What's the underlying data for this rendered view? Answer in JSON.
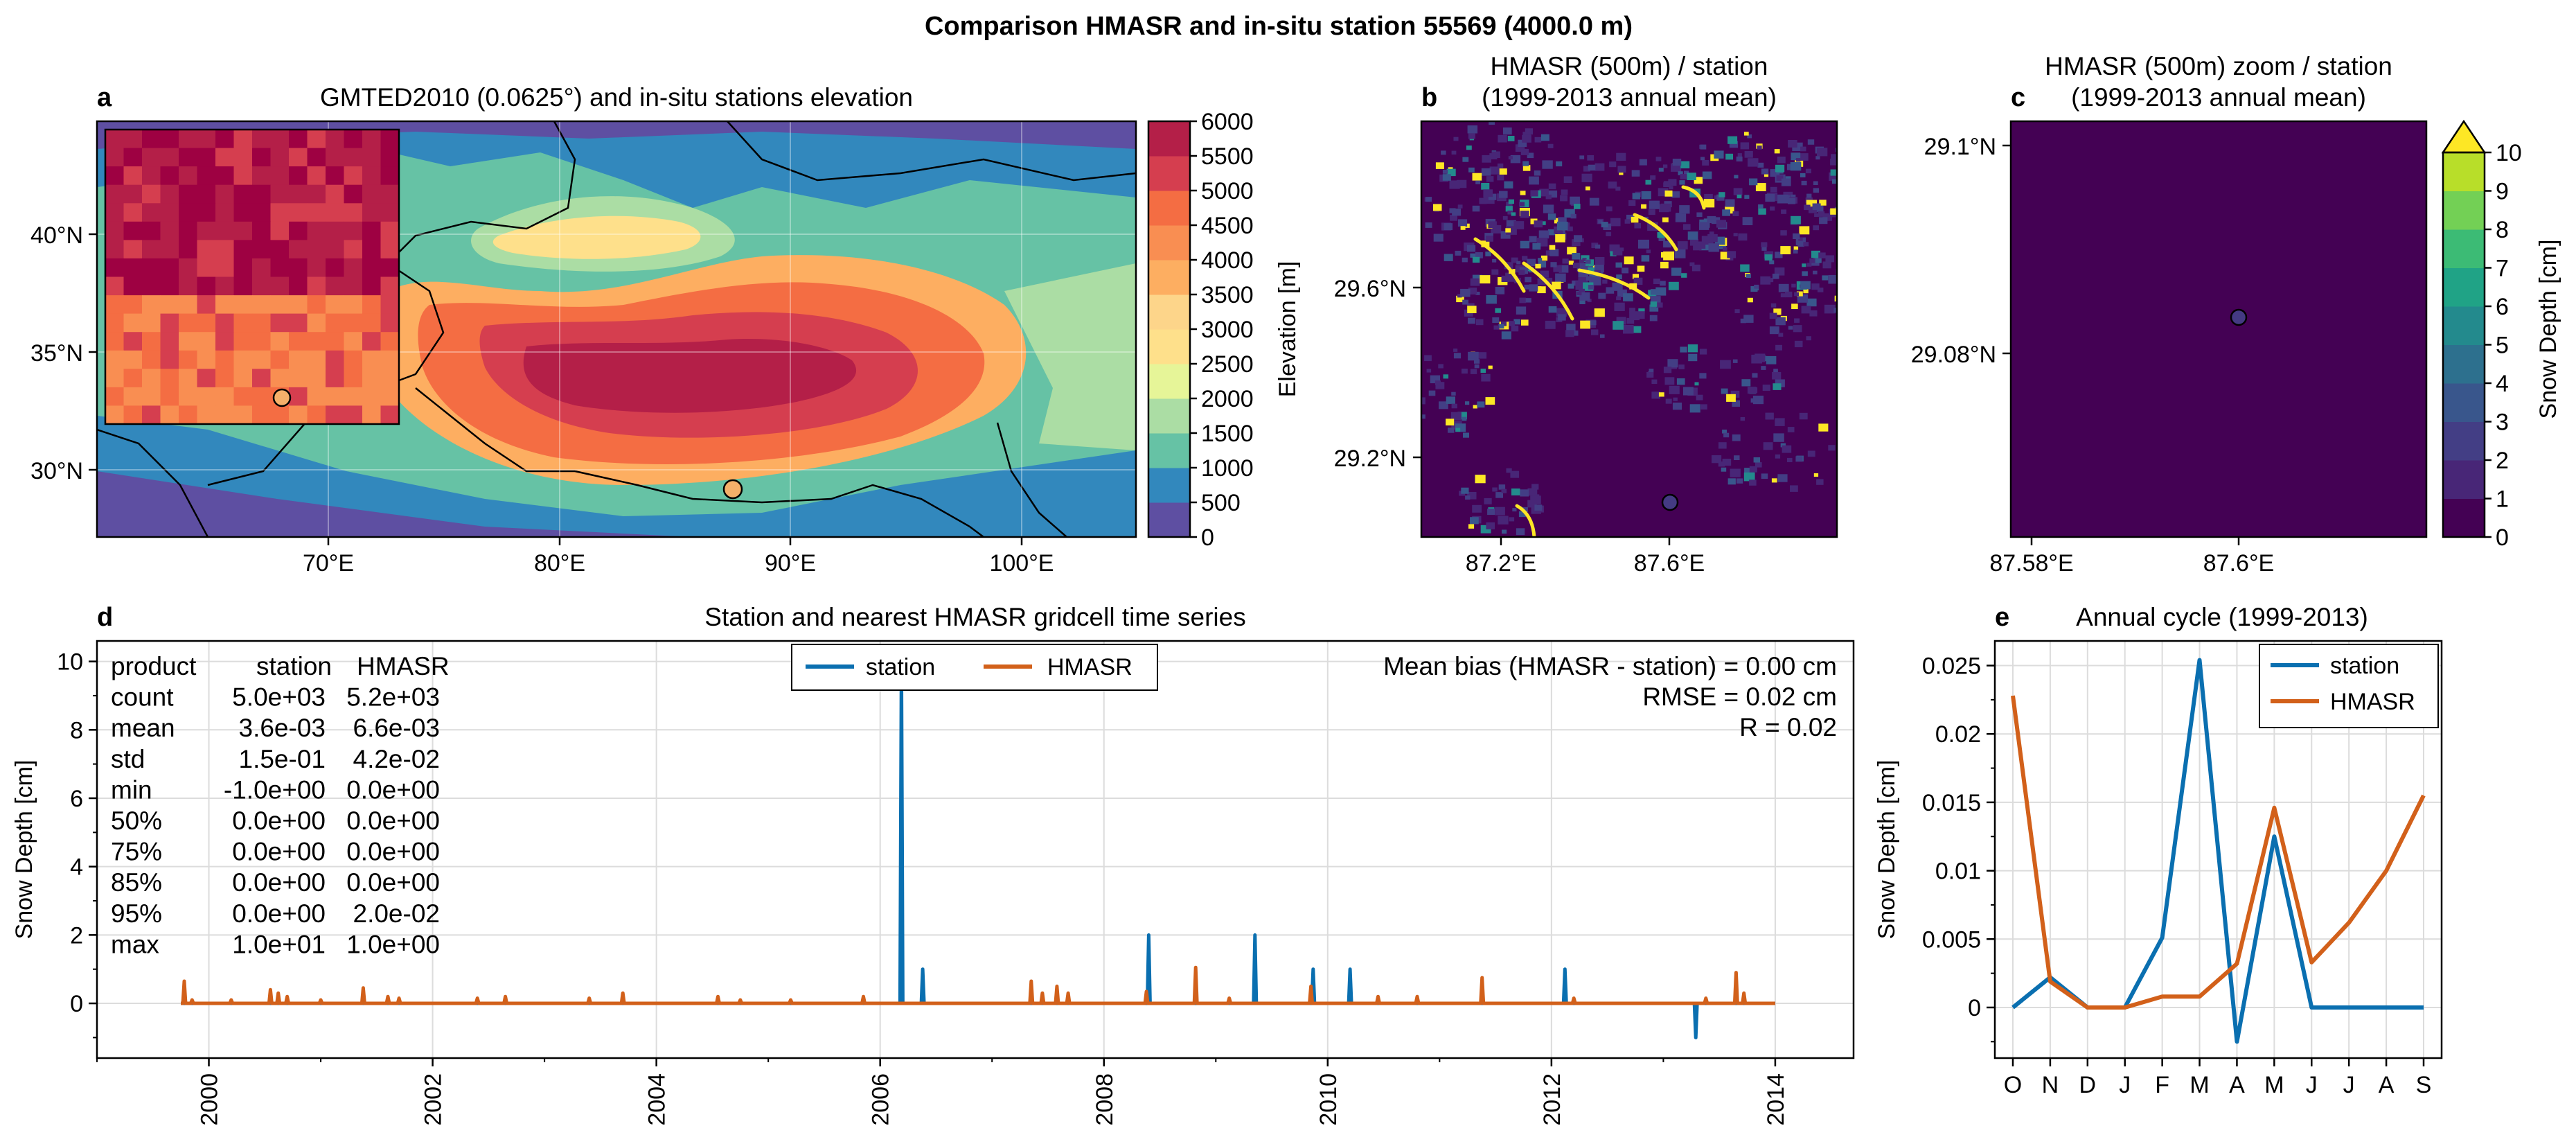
{
  "figure": {
    "suptitle": "Comparison HMASR and in-situ station 55569 (4000.0 m)"
  },
  "colors": {
    "station": "#0a6fb0",
    "hmasr": "#d2601a",
    "panel_bg": "#440154",
    "marker_station_a": "#f5b06a",
    "marker_station_b": "#443a83"
  },
  "panel_a": {
    "letter": "a",
    "title": "GMTED2010 (0.0625°) and in-situ stations elevation",
    "lat_ticks": [
      "40°N",
      "35°N",
      "30°N"
    ],
    "lon_ticks": [
      "70°E",
      "80°E",
      "90°E",
      "100°E"
    ],
    "colorbar": {
      "label": "Elevation [m]",
      "ticks": [
        "6000",
        "5500",
        "5000",
        "4500",
        "4000",
        "3500",
        "3000",
        "2500",
        "2000",
        "1500",
        "1000",
        "500",
        "0"
      ],
      "colors": [
        "#5e4fa2",
        "#3288bd",
        "#66c2a5",
        "#abdda4",
        "#e6f598",
        "#fee08b",
        "#fdd58a",
        "#fdae61",
        "#f98e52",
        "#f46d43",
        "#d53e4f",
        "#b41f48",
        "#9e0142"
      ]
    }
  },
  "panel_b": {
    "letter": "b",
    "title_line1": "HMASR (500m) / station",
    "title_line2": "(1999-2013 annual mean)",
    "lat_ticks": [
      "29.6°N",
      "29.2°N"
    ],
    "lon_ticks": [
      "87.2°E",
      "87.6°E"
    ]
  },
  "panel_c": {
    "letter": "c",
    "title_line1": "HMASR (500m) zoom / station",
    "title_line2": "(1999-2013 annual mean)",
    "lat_ticks": [
      "29.1°N",
      "29.08°N"
    ],
    "lon_ticks": [
      "87.58°E",
      "87.6°E"
    ],
    "colorbar": {
      "label": "Snow Depth [cm]",
      "ticks": [
        "10",
        "9",
        "8",
        "7",
        "6",
        "5",
        "4",
        "3",
        "2",
        "1",
        "0"
      ],
      "colors": [
        "#440154",
        "#482677",
        "#433e85",
        "#39568c",
        "#2d708e",
        "#238a8d",
        "#20a386",
        "#3cbb75",
        "#73d055",
        "#b8de29",
        "#fde725"
      ]
    }
  },
  "panel_d": {
    "letter": "d",
    "title": "Station and nearest HMASR gridcell time series",
    "ylabel": "Snow Depth [cm]",
    "legend": [
      "station",
      "HMASR"
    ],
    "stats_header": [
      "product",
      "station",
      "HMASR"
    ],
    "stats_rows": [
      [
        "count",
        "5.0e+03",
        "5.2e+03"
      ],
      [
        "mean",
        "3.6e-03",
        "6.6e-03"
      ],
      [
        "std",
        "1.5e-01",
        "4.2e-02"
      ],
      [
        "min",
        "-1.0e+00",
        "0.0e+00"
      ],
      [
        "50%",
        "0.0e+00",
        "0.0e+00"
      ],
      [
        "75%",
        "0.0e+00",
        "0.0e+00"
      ],
      [
        "85%",
        "0.0e+00",
        "0.0e+00"
      ],
      [
        "95%",
        "0.0e+00",
        "2.0e-02"
      ],
      [
        "max",
        "1.0e+01",
        "1.0e+00"
      ]
    ],
    "metrics": [
      "Mean bias (HMASR - station) = 0.00 cm",
      "RMSE = 0.02 cm",
      "R = 0.02"
    ]
  },
  "panel_e": {
    "letter": "e",
    "title": "Annual cycle (1999-2013)",
    "ylabel": "Snow Depth [cm]",
    "legend": [
      "station",
      "HMASR"
    ]
  },
  "chart_data": [
    {
      "type": "line",
      "panel": "d",
      "x_tick_labels": [
        "2000",
        "2002",
        "2004",
        "2006",
        "2008",
        "2010",
        "2012",
        "2014"
      ],
      "y_tick_labels": [
        "10",
        "8",
        "6",
        "4",
        "2",
        "0"
      ],
      "xlim": [
        1999.0,
        2014.7
      ],
      "ylim": [
        -1.6,
        10.6
      ],
      "grid": true,
      "legend_position": "top-center",
      "series": [
        {
          "name": "station",
          "spikes": [
            {
              "x": 2006.19,
              "y": 10.0
            },
            {
              "x": 2006.38,
              "y": 1.0
            },
            {
              "x": 2008.4,
              "y": 2.0
            },
            {
              "x": 2009.35,
              "y": 2.0
            },
            {
              "x": 2009.87,
              "y": 1.0
            },
            {
              "x": 2010.2,
              "y": 1.0
            },
            {
              "x": 2012.12,
              "y": 1.0
            },
            {
              "x": 2013.29,
              "y": -1.0
            }
          ]
        },
        {
          "name": "HMASR",
          "spikes": [
            {
              "x": 1999.78,
              "y": 0.65
            },
            {
              "x": 1999.85,
              "y": 0.1
            },
            {
              "x": 2000.2,
              "y": 0.1
            },
            {
              "x": 2000.55,
              "y": 0.4
            },
            {
              "x": 2000.62,
              "y": 0.3
            },
            {
              "x": 2000.7,
              "y": 0.2
            },
            {
              "x": 2001.0,
              "y": 0.1
            },
            {
              "x": 2001.38,
              "y": 0.45
            },
            {
              "x": 2001.6,
              "y": 0.2
            },
            {
              "x": 2001.7,
              "y": 0.15
            },
            {
              "x": 2002.4,
              "y": 0.15
            },
            {
              "x": 2002.65,
              "y": 0.2
            },
            {
              "x": 2003.4,
              "y": 0.15
            },
            {
              "x": 2003.7,
              "y": 0.3
            },
            {
              "x": 2004.55,
              "y": 0.2
            },
            {
              "x": 2004.75,
              "y": 0.1
            },
            {
              "x": 2005.2,
              "y": 0.1
            },
            {
              "x": 2005.85,
              "y": 0.2
            },
            {
              "x": 2007.35,
              "y": 0.65
            },
            {
              "x": 2007.45,
              "y": 0.3
            },
            {
              "x": 2007.58,
              "y": 0.5
            },
            {
              "x": 2007.68,
              "y": 0.3
            },
            {
              "x": 2008.38,
              "y": 0.35
            },
            {
              "x": 2008.82,
              "y": 1.05
            },
            {
              "x": 2009.12,
              "y": 0.15
            },
            {
              "x": 2009.85,
              "y": 0.5
            },
            {
              "x": 2010.45,
              "y": 0.2
            },
            {
              "x": 2010.8,
              "y": 0.2
            },
            {
              "x": 2011.38,
              "y": 0.75
            },
            {
              "x": 2012.2,
              "y": 0.15
            },
            {
              "x": 2013.38,
              "y": 0.15
            },
            {
              "x": 2013.65,
              "y": 0.9
            },
            {
              "x": 2013.72,
              "y": 0.3
            }
          ]
        }
      ]
    },
    {
      "type": "line",
      "panel": "e",
      "categories": [
        "O",
        "N",
        "D",
        "J",
        "F",
        "M",
        "A",
        "M",
        "J",
        "J",
        "A",
        "S"
      ],
      "y_tick_labels": [
        "0.025",
        "0.02",
        "0.015",
        "0.01",
        "0.005",
        "0"
      ],
      "ylim": [
        -0.0037,
        0.0268
      ],
      "grid": true,
      "legend_position": "top-right",
      "series": [
        {
          "name": "station",
          "values": [
            0.0,
            0.0022,
            0.0,
            0.0,
            0.0051,
            0.0254,
            -0.0025,
            0.0125,
            0.0,
            0.0,
            0.0,
            0.0
          ]
        },
        {
          "name": "HMASR",
          "values": [
            0.0228,
            0.0019,
            0.0,
            0.0,
            0.0008,
            0.0008,
            0.0032,
            0.0146,
            0.0033,
            0.0062,
            0.01,
            0.0155
          ]
        }
      ]
    }
  ]
}
